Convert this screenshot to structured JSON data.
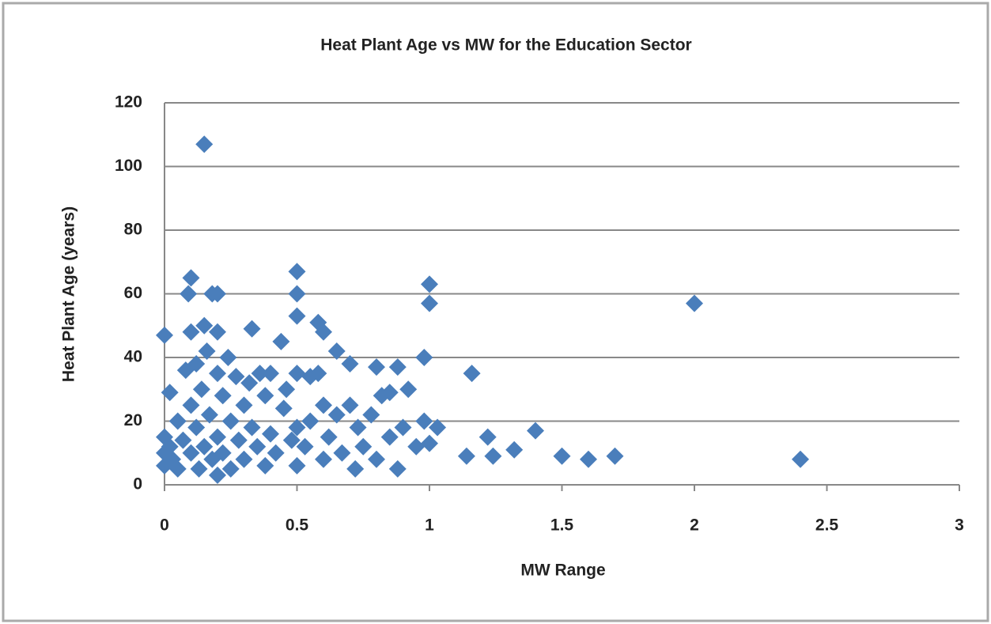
{
  "chart_data": {
    "type": "scatter",
    "title": "Heat Plant Age vs MW for the Education Sector",
    "xlabel": "MW Range",
    "ylabel": "Heat Plant Age (years)",
    "color": "#4a7ebb",
    "grid": true,
    "xlim": [
      0,
      3
    ],
    "xticks": [
      0,
      0.5,
      1,
      1.5,
      2,
      2.5,
      3
    ],
    "ylim": [
      0,
      120
    ],
    "yticks": [
      0,
      20,
      40,
      60,
      80,
      100,
      120
    ],
    "x": [
      0,
      0.02,
      0,
      0,
      0,
      0.02,
      0.03,
      0.05,
      0.05,
      0.07,
      0.08,
      0.09,
      0.1,
      0.1,
      0.1,
      0.1,
      0.12,
      0.12,
      0.13,
      0.14,
      0.15,
      0.15,
      0.15,
      0.16,
      0.17,
      0.18,
      0.18,
      0.2,
      0.2,
      0.2,
      0.2,
      0.2,
      0.22,
      0.22,
      0.24,
      0.25,
      0.25,
      0.27,
      0.28,
      0.3,
      0.3,
      0.32,
      0.33,
      0.33,
      0.35,
      0.36,
      0.38,
      0.38,
      0.4,
      0.4,
      0.42,
      0.44,
      0.45,
      0.46,
      0.48,
      0.5,
      0.5,
      0.5,
      0.5,
      0.5,
      0.5,
      0.53,
      0.55,
      0.55,
      0.58,
      0.58,
      0.6,
      0.6,
      0.6,
      0.62,
      0.65,
      0.65,
      0.67,
      0.7,
      0.7,
      0.72,
      0.73,
      0.75,
      0.78,
      0.8,
      0.8,
      0.82,
      0.85,
      0.85,
      0.88,
      0.88,
      0.9,
      0.92,
      0.95,
      0.98,
      0.98,
      1,
      1,
      1,
      1.03,
      1.14,
      1.16,
      1.22,
      1.24,
      1.32,
      1.4,
      1.5,
      1.6,
      1.7,
      2,
      2.4
    ],
    "y": [
      47,
      29,
      15,
      10,
      6,
      12,
      8,
      20,
      5,
      14,
      36,
      60,
      65,
      48,
      25,
      10,
      38,
      18,
      5,
      30,
      107,
      50,
      12,
      42,
      22,
      60,
      8,
      60,
      48,
      35,
      15,
      3,
      28,
      10,
      40,
      20,
      5,
      34,
      14,
      25,
      8,
      32,
      49,
      18,
      12,
      35,
      28,
      6,
      35,
      16,
      10,
      45,
      24,
      30,
      14,
      67,
      60,
      53,
      35,
      18,
      6,
      12,
      34,
      20,
      51,
      35,
      48,
      25,
      8,
      15,
      42,
      22,
      10,
      38,
      25,
      5,
      18,
      12,
      22,
      37,
      8,
      28,
      29,
      15,
      37,
      5,
      18,
      30,
      12,
      20,
      40,
      63,
      57,
      13,
      18,
      9,
      35,
      15,
      9,
      11,
      17,
      9,
      8,
      9,
      57,
      8
    ]
  }
}
